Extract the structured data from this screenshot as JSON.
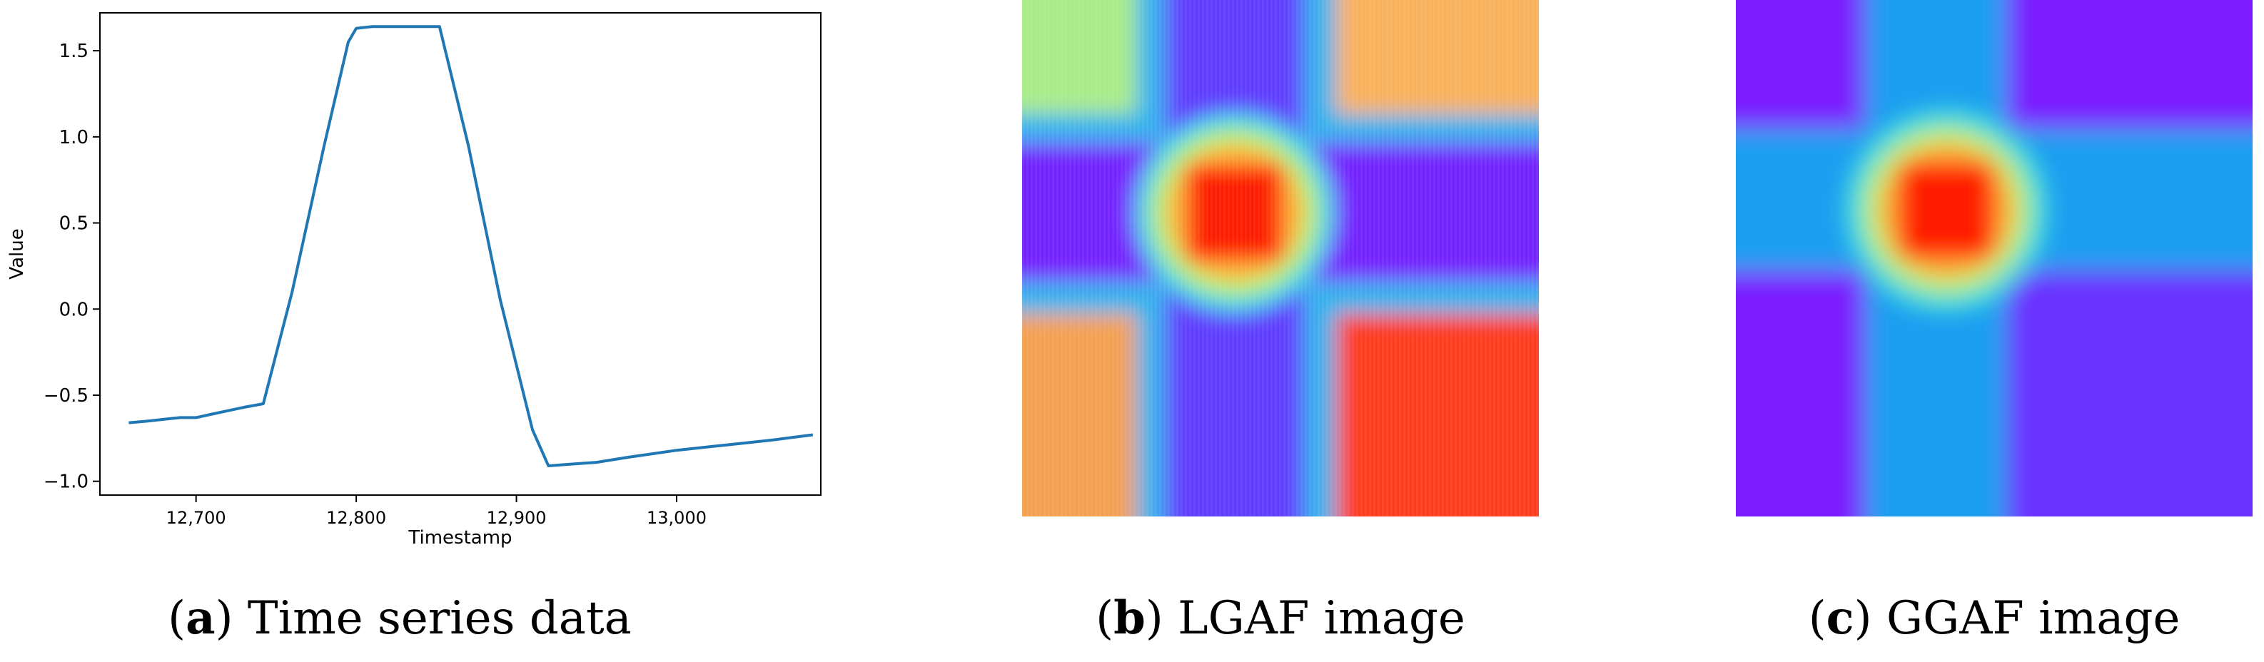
{
  "chart_data": [
    {
      "type": "line",
      "xlabel": "Timestamp",
      "ylabel": "Value",
      "xlim": [
        12640,
        13090
      ],
      "ylim": [
        -1.08,
        1.72
      ],
      "x_ticks": [
        12700,
        12800,
        12900,
        13000
      ],
      "x_tick_labels": [
        "12,700",
        "12,800",
        "12,900",
        "13,000"
      ],
      "y_ticks": [
        -1.0,
        -0.5,
        0.0,
        0.5,
        1.0,
        1.5
      ],
      "y_tick_labels": [
        "−1.0",
        "−0.5",
        "0.0",
        "0.5",
        "1.0",
        "1.5"
      ],
      "grid": false,
      "series": [
        {
          "color": "#1f77b4",
          "points": [
            [
              12658,
              -0.66
            ],
            [
              12670,
              -0.65
            ],
            [
              12680,
              -0.64
            ],
            [
              12690,
              -0.63
            ],
            [
              12700,
              -0.63
            ],
            [
              12710,
              -0.61
            ],
            [
              12720,
              -0.59
            ],
            [
              12730,
              -0.57
            ],
            [
              12742,
              -0.55
            ],
            [
              12760,
              0.1
            ],
            [
              12780,
              0.95
            ],
            [
              12795,
              1.55
            ],
            [
              12800,
              1.63
            ],
            [
              12810,
              1.64
            ],
            [
              12830,
              1.64
            ],
            [
              12852,
              1.64
            ],
            [
              12870,
              0.95
            ],
            [
              12890,
              0.05
            ],
            [
              12910,
              -0.7
            ],
            [
              12920,
              -0.91
            ],
            [
              12935,
              -0.9
            ],
            [
              12950,
              -0.89
            ],
            [
              12970,
              -0.86
            ],
            [
              13000,
              -0.82
            ],
            [
              13020,
              -0.8
            ],
            [
              13040,
              -0.78
            ],
            [
              13060,
              -0.76
            ],
            [
              13085,
              -0.73
            ]
          ]
        }
      ]
    },
    {
      "type": "heatmap",
      "caption_letter": "b",
      "caption_text": "LGAF image",
      "colormap": "rainbow"
    },
    {
      "type": "heatmap",
      "caption_letter": "c",
      "caption_text": "GGAF image",
      "colormap": "rainbow"
    }
  ],
  "captions": [
    {
      "letter": "a",
      "text": "Time series data"
    },
    {
      "letter": "b",
      "text": "LGAF image"
    },
    {
      "letter": "c",
      "text": "GGAF image"
    }
  ]
}
